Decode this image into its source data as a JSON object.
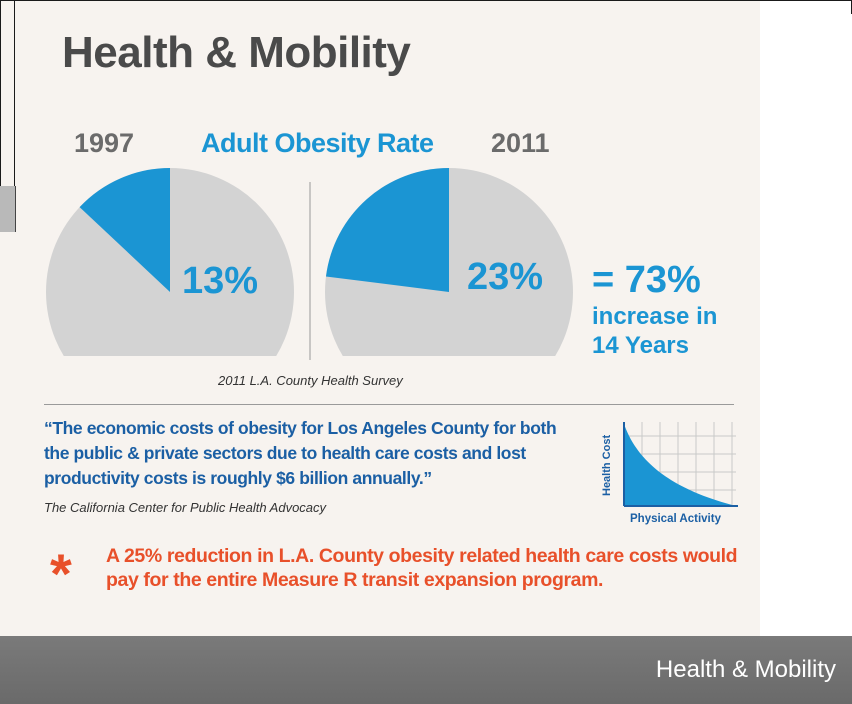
{
  "title": "Health & Mobility",
  "chart_data": {
    "type": "pie",
    "title": "Adult Obesity Rate",
    "charts": [
      {
        "label": "1997",
        "value": 13,
        "display": "13%"
      },
      {
        "label": "2011",
        "value": 23,
        "display": "23%"
      }
    ],
    "source": "2011 L.A. County Health Survey",
    "colors": {
      "highlight": "#1b95d3",
      "base": "#d3d3d3"
    }
  },
  "increase": {
    "value": "= 73%",
    "line1": "increase in",
    "line2": "14 Years"
  },
  "quote": {
    "text": "“The economic costs of obesity for Los Angeles  County for both the public & private sectors due to health care costs and lost productivity costs is roughly $6 billion annually.”",
    "attribution": "The California Center for Public Health Advocacy"
  },
  "mini_chart": {
    "ylabel": "Health Cost",
    "xlabel": "Physical Activity"
  },
  "callout": {
    "symbol": "*",
    "text": "A 25% reduction in L.A. County obesity related health care costs would pay for the entire Measure R transit expansion program."
  },
  "footer": {
    "label": "Health & Mobility"
  },
  "colors": {
    "accent": "#1b95d3",
    "title": "#4a4a4a",
    "quote": "#1b5fa4",
    "callout": "#e8502a",
    "footer": "#707070"
  }
}
